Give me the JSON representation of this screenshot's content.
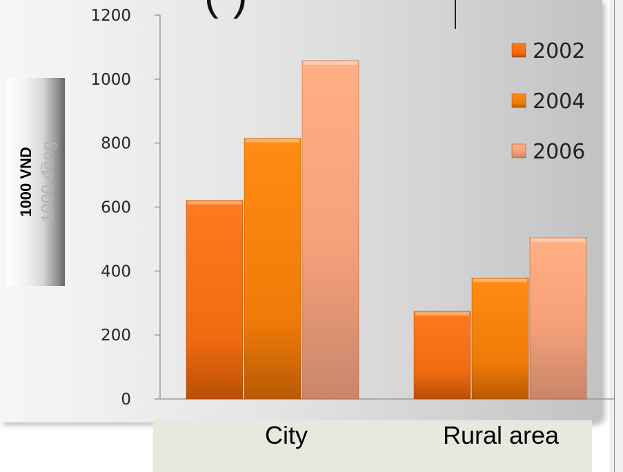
{
  "chart_data": {
    "type": "bar",
    "categories": [
      "City",
      "Rural area"
    ],
    "series": [
      {
        "name": "2002",
        "values": [
          621,
          274
        ],
        "color": "#f7741c"
      },
      {
        "name": "2004",
        "values": [
          815,
          378
        ],
        "color": "#ff8a10"
      },
      {
        "name": "2006",
        "values": [
          1058,
          504
        ],
        "color": "#ffb08a"
      }
    ],
    "title": "",
    "xlabel": "",
    "ylabel": "1000 VND",
    "ylabel_shadow": "1000 đồng",
    "ylim": [
      0,
      1200
    ],
    "yticks": [
      0,
      200,
      400,
      600,
      800,
      1000,
      1200
    ],
    "grid": false,
    "legend": "top-right"
  },
  "decor": {
    "top_text": "(   )"
  }
}
